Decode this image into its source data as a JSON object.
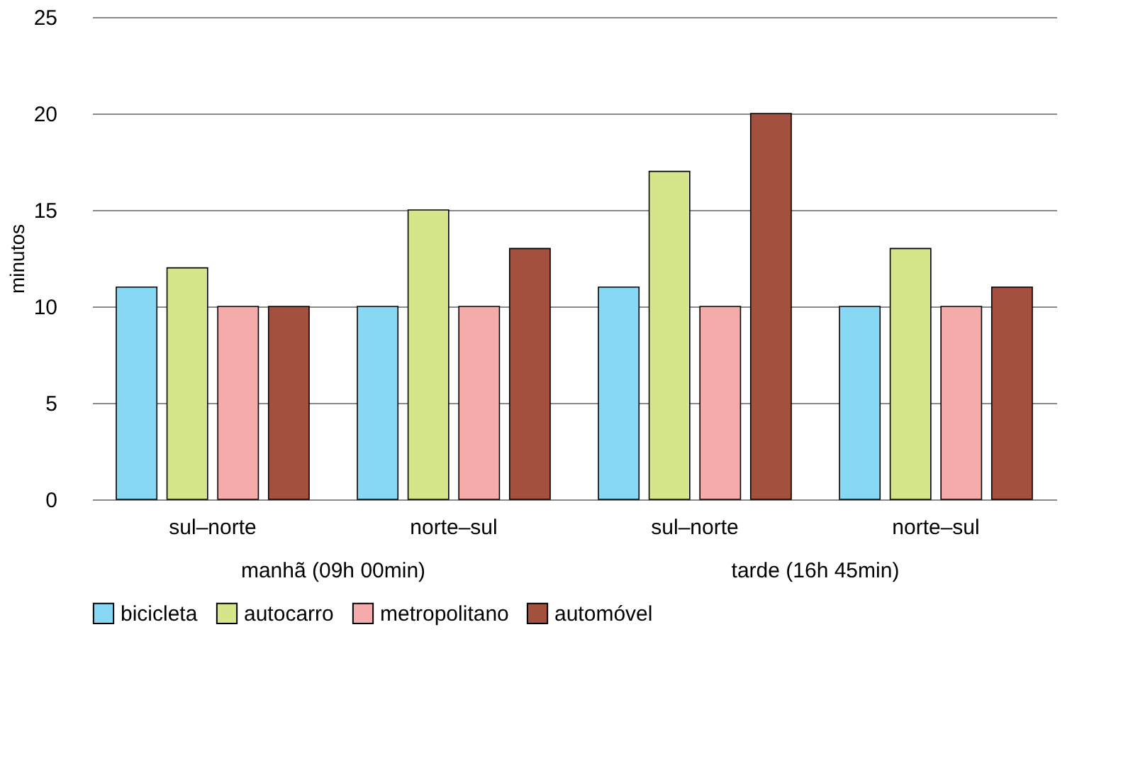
{
  "chart_data": {
    "type": "bar",
    "ylabel": "minutos",
    "categories": [
      "sul–norte",
      "norte–sul",
      "sul–norte",
      "norte–sul"
    ],
    "series": [
      {
        "name": "bicicleta",
        "color": "#87d8f5",
        "values": [
          11,
          10,
          11,
          10
        ]
      },
      {
        "name": "autocarro",
        "color": "#d5e58a",
        "values": [
          12,
          15,
          17,
          13
        ]
      },
      {
        "name": "metropolitano",
        "color": "#f6abab",
        "values": [
          10,
          10,
          10,
          10
        ]
      },
      {
        "name": "automóvel",
        "color": "#a3503f",
        "values": [
          10,
          13,
          20,
          11
        ]
      }
    ],
    "ylim": [
      0,
      25
    ],
    "yticks": [
      0,
      5,
      10,
      15,
      20,
      25
    ],
    "grid": "y",
    "legend": "bottom",
    "annotations": [
      "manhã (09h 00min)",
      "tarde (16h 45min)"
    ]
  }
}
